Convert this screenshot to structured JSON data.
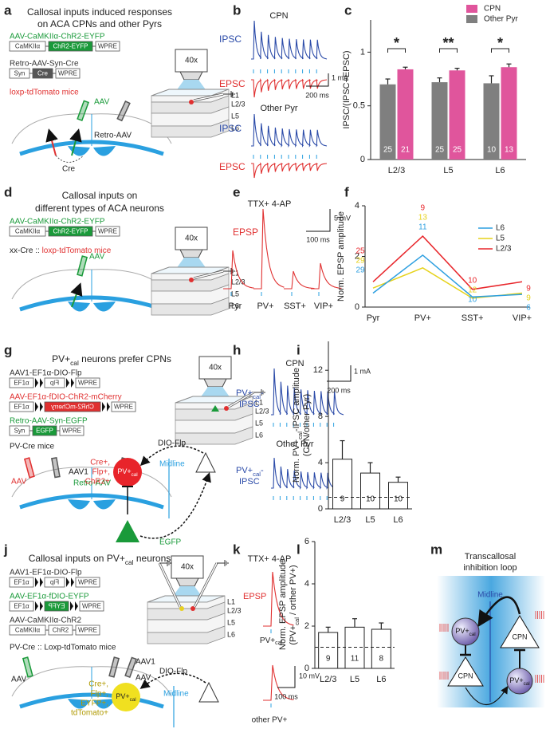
{
  "letters": [
    "a",
    "b",
    "c",
    "d",
    "e",
    "f",
    "g",
    "h",
    "i",
    "j",
    "k",
    "l",
    "m"
  ],
  "a": {
    "title": [
      "Callosal inputs induced responses",
      "on ACA CPNs and other Pyrs"
    ],
    "constructs": [
      {
        "name": "AAV-CaMKIIα-ChR2-EYFP",
        "color": "#1a9a3a",
        "parts": [
          {
            "label": "CaMKIIα"
          },
          {
            "label": "ChR2-EYFP",
            "fill": "#1a9a3a"
          },
          {
            "label": "WPRE"
          }
        ]
      },
      {
        "name": "Retro-AAV-Syn-Cre",
        "color": "#333333",
        "parts": [
          {
            "label": "Syn"
          },
          {
            "label": "Cre",
            "fill": "#555555"
          },
          {
            "label": "WPRE"
          }
        ]
      }
    ],
    "mice": "loxp-tdTomato mice",
    "brain": [
      "AAV",
      "Retro-AAV",
      "Cre"
    ],
    "objective": "40x",
    "layers": [
      "L1",
      "L2/3",
      "L5",
      "L6"
    ]
  },
  "b": {
    "cpn": "CPN",
    "other": "Other Pyr",
    "ipsc": "IPSC",
    "epsc": "EPSC",
    "scale_y": "1 mA",
    "scale_x": "200 ms"
  },
  "d": {
    "title": [
      "Callosal inputs on",
      "different types of ACA neurons"
    ],
    "constructs": [
      {
        "name": "AAV-CaMKIIα-ChR2-EYFP",
        "color": "#1a9a3a",
        "parts": [
          {
            "label": "CaMKIIα"
          },
          {
            "label": "ChR2-EYFP",
            "fill": "#1a9a3a"
          },
          {
            "label": "WPRE"
          }
        ]
      }
    ],
    "mice_prefix": "xx-Cre :: ",
    "mice": "loxp-tdTomato mice",
    "brain": [
      "AAV"
    ],
    "objective": "40x",
    "layers": [
      "L1",
      "L2/3",
      "L5",
      "L6"
    ]
  },
  "e": {
    "condition": "TTX+ 4-AP",
    "trace": "EPSP",
    "scale_y": "5 mV",
    "scale_x": "100 ms",
    "cells": [
      "Pyr",
      "PV+",
      "SST+",
      "VIP+"
    ]
  },
  "g": {
    "title": {
      "main": "PV+",
      "sub": "cal",
      "rest": " neurons prefer CPNs"
    },
    "constructs": [
      {
        "name": "AAV1-EF1α-DIO-Flp",
        "color": "#333333",
        "dio": true,
        "parts": [
          {
            "label": "EF1α"
          },
          {
            "label": "Flp",
            "flipped": true
          },
          {
            "label": "WPRE"
          }
        ]
      },
      {
        "name": "AAV-EF1α-fDIO-ChR2-mCherry",
        "color": "#e03030",
        "dio": true,
        "parts": [
          {
            "label": "EF1α"
          },
          {
            "label": "ChR2-mCherry",
            "fill": "#e03030",
            "flipped": true
          },
          {
            "label": "WPRE"
          }
        ]
      },
      {
        "name": "Retro-AAV-Syn-EGFP",
        "color": "#1a9a3a",
        "parts": [
          {
            "label": "Syn"
          },
          {
            "label": "EGFP",
            "fill": "#1a9a3a"
          },
          {
            "label": "WPRE"
          }
        ]
      }
    ],
    "mice": "PV-Cre mice",
    "brain": [
      "AAV",
      "AAV1",
      "Retro-AAV"
    ],
    "objective": "40x",
    "layers": [
      "L1",
      "L2/3",
      "L5",
      "L6"
    ],
    "circuit": {
      "flp": "DIO-Flp",
      "midline": "Midline",
      "markers": [
        "Cre+,",
        "Flp+,",
        "ChR2+"
      ],
      "cell": {
        "main": "PV+",
        "sub": "cal"
      },
      "tracer": "EGFP"
    }
  },
  "h": {
    "cpn": "CPN",
    "other": "Other Pyr",
    "trace": {
      "main": "PV+",
      "sub": "cal",
      "rest": "-"
    },
    "trace2": "IPSC",
    "scale_y": "1 mA",
    "scale_x": "200 ms"
  },
  "j": {
    "title": {
      "pre": "Callosal inputs on ",
      "main": "PV+",
      "sub": "cal",
      "rest": " neurons"
    },
    "constructs": [
      {
        "name": "AAV1-EF1α-DIO-Flp",
        "color": "#333333",
        "dio": true,
        "parts": [
          {
            "label": "EF1α"
          },
          {
            "label": "Flp",
            "flipped": true
          },
          {
            "label": "WPRE"
          }
        ]
      },
      {
        "name": "AAV-EF1α-fDIO-EYFP",
        "color": "#1a9a3a",
        "dio": true,
        "parts": [
          {
            "label": "EF1α"
          },
          {
            "label": "EYFP",
            "fill": "#1a9a3a",
            "flipped": true
          },
          {
            "label": "WPRE"
          }
        ]
      },
      {
        "name": "AAV-CaMKIIα-ChR2",
        "color": "#333333",
        "parts": [
          {
            "label": "CaMKIIα"
          },
          {
            "label": "ChR2"
          },
          {
            "label": "WPRE"
          }
        ]
      }
    ],
    "mice": "PV-Cre :: Loxp-tdTomato mice",
    "brain": [
      "AAV",
      "AAV1",
      "AAV"
    ],
    "objective": "40x",
    "layers": [
      "L1",
      "L2/3",
      "L5",
      "L6"
    ],
    "circuit": {
      "flp": "DIO-Flp",
      "midline": "Midline",
      "cell": {
        "main": "PV+",
        "sub": "cal"
      },
      "markers": [
        "Cre+,",
        "Flp+,",
        "EYFP+,",
        "tdTomato+"
      ]
    }
  },
  "k": {
    "condition": "TTX+ 4-AP",
    "trace": "EPSP",
    "cell": {
      "main": "PV+",
      "sub": "cal"
    },
    "other": "other PV+",
    "scale_y": "10 mV",
    "scale_x": "100 ms"
  },
  "m": {
    "title": [
      "Transcallosal",
      "inhibition loop"
    ],
    "midline": "Midline",
    "cell": {
      "main": "PV+",
      "sub": "cal"
    },
    "cpn": "CPN"
  },
  "chart_data": [
    {
      "type": "bar",
      "ylabel": "IPSC/(IPSC+EPSC)",
      "categories": [
        "L2/3",
        "L5",
        "L6"
      ],
      "series": [
        {
          "name": "Other Pyr",
          "color": "#7f7f7f",
          "values": [
            0.7,
            0.72,
            0.71
          ],
          "errors": [
            0.05,
            0.04,
            0.07
          ],
          "n": [
            25,
            25,
            10
          ]
        },
        {
          "name": "CPN",
          "color": "#e0559c",
          "values": [
            0.84,
            0.83,
            0.86
          ],
          "errors": [
            0.02,
            0.02,
            0.03
          ],
          "n": [
            21,
            25,
            13
          ]
        }
      ],
      "significance": [
        "*",
        "**",
        "*"
      ],
      "ylim": [
        0,
        1.3
      ],
      "yticks": [
        0,
        0.5,
        1
      ],
      "legend": "top-right"
    },
    {
      "type": "line",
      "ylabel": "Norm. EPSP amplitude",
      "categories": [
        "Pyr",
        "PV+",
        "SST+",
        "VIP+"
      ],
      "series": [
        {
          "name": "L2/3",
          "color": "#e8262b",
          "values": [
            1.0,
            2.8,
            0.7,
            1.0
          ],
          "n": [
            25,
            9,
            10,
            9
          ]
        },
        {
          "name": "L5",
          "color": "#e6d21a",
          "values": [
            0.75,
            1.55,
            0.35,
            0.55
          ],
          "n": [
            29,
            13,
            12,
            9
          ]
        },
        {
          "name": "L6",
          "color": "#2d9fe0",
          "values": [
            0.55,
            2.05,
            0.4,
            0.5
          ],
          "n": [
            29,
            11,
            10,
            6
          ]
        }
      ],
      "ylim": [
        0,
        4
      ],
      "yticks": [
        0,
        2,
        4
      ],
      "legend": "top-right"
    },
    {
      "type": "bar",
      "ylabel": {
        "pre": "Norm. ",
        "main": "PV+",
        "sub": "cal",
        "rest": "-IPSC amplitude"
      },
      "ylabel2": "(CPN/other Pyr)",
      "categories": [
        "L2/3",
        "L5",
        "L6"
      ],
      "values": [
        4.3,
        3.1,
        2.3
      ],
      "errors": [
        1.6,
        0.9,
        0.45
      ],
      "n": [
        9,
        10,
        10
      ],
      "color": "#ffffff",
      "ylim": [
        0,
        14.5
      ],
      "yticks": [
        0,
        4,
        8,
        12
      ],
      "ref_line": 1
    },
    {
      "type": "bar",
      "ylabel": "Norm. EPSP amplitude",
      "ylabel2": {
        "pre": "(",
        "main": "PV+",
        "sub": "cal",
        "rest": " / orther PV+)"
      },
      "categories": [
        "L2/3",
        "L5",
        "L6"
      ],
      "values": [
        1.7,
        1.95,
        1.85
      ],
      "errors": [
        0.25,
        0.4,
        0.3
      ],
      "n": [
        9,
        11,
        8
      ],
      "color": "#ffffff",
      "ylim": [
        0,
        6
      ],
      "yticks": [
        0,
        2,
        4,
        6
      ],
      "ref_line": 1
    }
  ]
}
